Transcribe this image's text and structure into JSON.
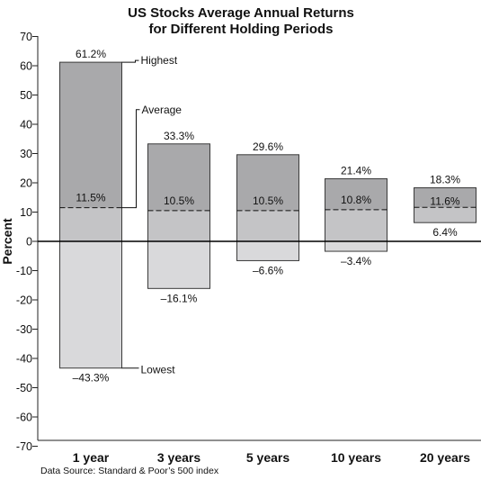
{
  "chart_data": {
    "type": "bar",
    "title_lines": [
      "US Stocks Average Annual Returns",
      "for Different Holding Periods"
    ],
    "ylabel": "Percent",
    "ylim": [
      -70,
      70
    ],
    "yticks": [
      "70",
      "60",
      "50",
      "40",
      "30",
      "20",
      "10",
      "0",
      "-10",
      "-20",
      "-30",
      "-40",
      "-50",
      "-60",
      "-70"
    ],
    "categories": [
      "1 year",
      "3 years",
      "5 years",
      "10 years",
      "20 years"
    ],
    "series": [
      {
        "name": "Highest",
        "values": [
          61.2,
          33.3,
          29.6,
          21.4,
          18.3
        ]
      },
      {
        "name": "Average",
        "values": [
          11.5,
          10.5,
          10.5,
          10.8,
          11.6
        ]
      },
      {
        "name": "Lowest",
        "values": [
          -43.3,
          -16.1,
          -6.6,
          -3.4,
          6.4
        ]
      }
    ],
    "value_labels": {
      "high": [
        "61.2%",
        "33.3%",
        "29.6%",
        "21.4%",
        "18.3%"
      ],
      "avg": [
        "11.5%",
        "10.5%",
        "10.5%",
        "10.8%",
        "11.6%"
      ],
      "low": [
        "–43.3%",
        "–16.1%",
        "–6.6%",
        "–3.4%",
        "6.4%"
      ]
    },
    "callouts": {
      "high": "Highest",
      "avg": "Average",
      "low": "Lowest"
    },
    "source": "Data Source: Standard & Poor’s 500 index",
    "colors": {
      "upper": "#a9a9ab",
      "lower": "#c4c4c6",
      "negative": "#d9d9db",
      "outline": "#3a3a3a"
    }
  }
}
